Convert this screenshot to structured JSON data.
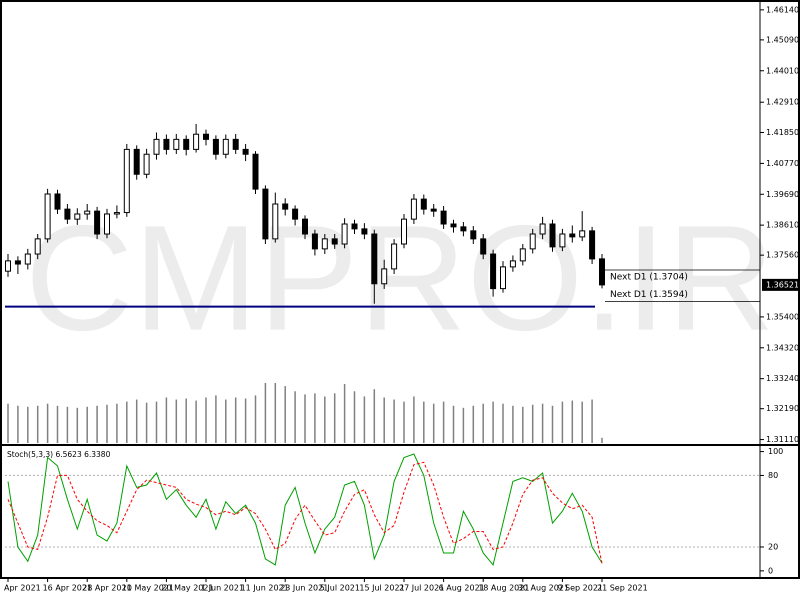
{
  "chart_data": [
    {
      "type": "candlestick",
      "watermark": "CMPRO.IR",
      "categories": [
        "Apr 2021",
        null,
        null,
        null,
        "16 Apr 2021",
        null,
        null,
        null,
        "28 Apr 2021",
        null,
        null,
        null,
        "10 May 2021",
        null,
        null,
        null,
        "20 May 2021",
        null,
        null,
        null,
        "1 Jun 2021",
        null,
        null,
        null,
        "11 Jun 2021",
        null,
        null,
        null,
        "23 Jun 2021",
        null,
        null,
        null,
        "5 Jul 2021",
        null,
        null,
        null,
        "15 Jul 2021",
        null,
        null,
        null,
        "27 Jul 2021",
        null,
        null,
        null,
        "6 Aug 2021",
        null,
        null,
        null,
        "18 Aug 2021",
        null,
        null,
        null,
        "30 Aug 2021",
        null,
        null,
        null,
        "9 Sep 2021",
        null,
        null,
        null,
        "21 Sep 2021"
      ],
      "open": [
        1.37,
        1.3736,
        1.3725,
        1.376,
        1.3813,
        1.397,
        1.3917,
        1.3882,
        1.39,
        1.391,
        1.383,
        1.39,
        1.3905,
        1.4126,
        1.4039,
        1.4109,
        1.4161,
        1.4126,
        1.4161,
        1.4126,
        1.4179,
        1.4161,
        1.4109,
        1.4161,
        1.4126,
        1.4109,
        1.3987,
        1.3813,
        1.3935,
        1.3917,
        1.3882,
        1.383,
        1.3778,
        1.3813,
        1.3795,
        1.3865,
        1.3848,
        1.383,
        1.3656,
        1.3708,
        1.3795,
        1.3882,
        1.3952,
        1.3917,
        1.391,
        1.3865,
        1.3855,
        1.3841,
        1.3813,
        1.376,
        1.3639,
        1.3715,
        1.3736,
        1.3778,
        1.383,
        1.3865,
        1.3785,
        1.383,
        1.382,
        1.3841,
        1.3743
      ],
      "high": [
        1.376,
        1.3752,
        1.3778,
        1.383,
        1.3988,
        1.3985,
        1.3935,
        1.392,
        1.3935,
        1.3925,
        1.3918,
        1.393,
        1.4145,
        1.414,
        1.4128,
        1.4185,
        1.4178,
        1.418,
        1.4175,
        1.4215,
        1.4195,
        1.4175,
        1.4178,
        1.418,
        1.4145,
        1.412,
        1.4,
        1.3975,
        1.3955,
        1.393,
        1.3895,
        1.3845,
        1.383,
        1.383,
        1.3885,
        1.388,
        1.3868,
        1.3845,
        1.374,
        1.3812,
        1.39,
        1.397,
        1.3968,
        1.3935,
        1.3928,
        1.388,
        1.3872,
        1.3858,
        1.383,
        1.3775,
        1.3735,
        1.3755,
        1.3795,
        1.3848,
        1.389,
        1.388,
        1.3848,
        1.386,
        1.391,
        1.3855,
        1.376
      ],
      "low": [
        1.368,
        1.369,
        1.3706,
        1.3742,
        1.38,
        1.39,
        1.3865,
        1.3862,
        1.388,
        1.3812,
        1.3815,
        1.3885,
        1.389,
        1.402,
        1.4025,
        1.409,
        1.4108,
        1.411,
        1.4105,
        1.4115,
        1.414,
        1.409,
        1.4095,
        1.411,
        1.4085,
        1.397,
        1.3795,
        1.38,
        1.3895,
        1.386,
        1.3812,
        1.3755,
        1.376,
        1.3778,
        1.378,
        1.383,
        1.3812,
        1.3586,
        1.3638,
        1.369,
        1.378,
        1.3865,
        1.3898,
        1.389,
        1.3848,
        1.3835,
        1.3822,
        1.3795,
        1.3742,
        1.3611,
        1.3625,
        1.3698,
        1.372,
        1.3762,
        1.3812,
        1.3768,
        1.377,
        1.38,
        1.3805,
        1.3725,
        1.364
      ],
      "close": [
        1.3736,
        1.3725,
        1.376,
        1.3813,
        1.397,
        1.3917,
        1.3882,
        1.39,
        1.391,
        1.383,
        1.39,
        1.3905,
        1.4126,
        1.4039,
        1.4109,
        1.4161,
        1.4126,
        1.4161,
        1.4126,
        1.4179,
        1.4161,
        1.4109,
        1.4161,
        1.4126,
        1.4109,
        1.3987,
        1.3813,
        1.3935,
        1.3917,
        1.3882,
        1.383,
        1.3778,
        1.3813,
        1.3795,
        1.3865,
        1.3848,
        1.383,
        1.3656,
        1.3708,
        1.3795,
        1.3882,
        1.3952,
        1.3917,
        1.391,
        1.3865,
        1.3855,
        1.3841,
        1.3813,
        1.376,
        1.3639,
        1.3715,
        1.3736,
        1.3778,
        1.383,
        1.3865,
        1.3785,
        1.383,
        1.382,
        1.3841,
        1.3743,
        1.3652
      ],
      "volume": [
        38,
        36,
        35,
        36,
        38,
        36,
        35,
        34,
        35,
        36,
        37,
        38,
        40,
        42,
        39,
        40,
        44,
        42,
        43,
        41,
        44,
        46,
        42,
        44,
        43,
        46,
        58,
        58,
        55,
        50,
        47,
        48,
        45,
        48,
        57,
        50,
        45,
        52,
        44,
        42,
        40,
        45,
        40,
        38,
        40,
        36,
        34,
        36,
        38,
        40,
        38,
        36,
        35,
        37,
        38,
        36,
        40,
        41,
        40,
        42,
        5
      ],
      "ylim": [
        1.3099,
        1.4631
      ],
      "yticks": [
        {
          "value": 1.4614,
          "label": "1.46140"
        },
        {
          "value": 1.4509,
          "label": "1.45090"
        },
        {
          "value": 1.4401,
          "label": "1.44010"
        },
        {
          "value": 1.4291,
          "label": "1.42910"
        },
        {
          "value": 1.4185,
          "label": "1.41850"
        },
        {
          "value": 1.4077,
          "label": "1.40770"
        },
        {
          "value": 1.3969,
          "label": "1.39690"
        },
        {
          "value": 1.3861,
          "label": "1.38610"
        },
        {
          "value": 1.3756,
          "label": "1.37560"
        },
        {
          "value": 1.354,
          "label": "1.35400"
        },
        {
          "value": 1.3432,
          "label": "1.34320"
        },
        {
          "value": 1.3324,
          "label": "1.33240"
        },
        {
          "value": 1.3219,
          "label": "1.32190"
        },
        {
          "value": 1.3111,
          "label": "1.31110"
        }
      ],
      "price_marker": {
        "value": 1.36521,
        "label": "1.36521"
      },
      "hline": 1.3576,
      "annotations": [
        {
          "value": 1.3704,
          "label": "Next D1 (1.3704)"
        },
        {
          "value": 1.3594,
          "label": "Next D1 (1.3594)"
        }
      ]
    },
    {
      "type": "line",
      "title": "Stoch(5,3,3) 6.5623 6.3380",
      "series": [
        {
          "color": "#00a000",
          "dashed": false,
          "values": [
            75,
            20,
            8,
            30,
            95,
            88,
            60,
            35,
            60,
            30,
            25,
            40,
            88,
            70,
            72,
            82,
            60,
            68,
            55,
            45,
            60,
            35,
            58,
            48,
            55,
            40,
            10,
            5,
            55,
            70,
            40,
            15,
            35,
            45,
            72,
            75,
            55,
            10,
            30,
            75,
            95,
            98,
            80,
            40,
            15,
            15,
            50,
            35,
            15,
            5,
            40,
            75,
            78,
            75,
            82,
            40,
            50,
            65,
            50,
            20,
            6.5623
          ]
        },
        {
          "color": "#ff0000",
          "dashed": true,
          "values": [
            60,
            40,
            20,
            18,
            45,
            80,
            80,
            60,
            50,
            42,
            38,
            32,
            50,
            68,
            76,
            74,
            72,
            70,
            60,
            56,
            53,
            47,
            50,
            47,
            53,
            48,
            35,
            18,
            23,
            43,
            55,
            42,
            30,
            32,
            50,
            64,
            68,
            47,
            32,
            38,
            66,
            89,
            91,
            72,
            45,
            23,
            27,
            33,
            33,
            18,
            20,
            40,
            64,
            76,
            78,
            65,
            57,
            52,
            55,
            45,
            6.338
          ]
        }
      ],
      "ylim": [
        -6,
        103
      ],
      "yticks": [
        0,
        20,
        80,
        100
      ],
      "levels": [
        20,
        80
      ]
    }
  ]
}
